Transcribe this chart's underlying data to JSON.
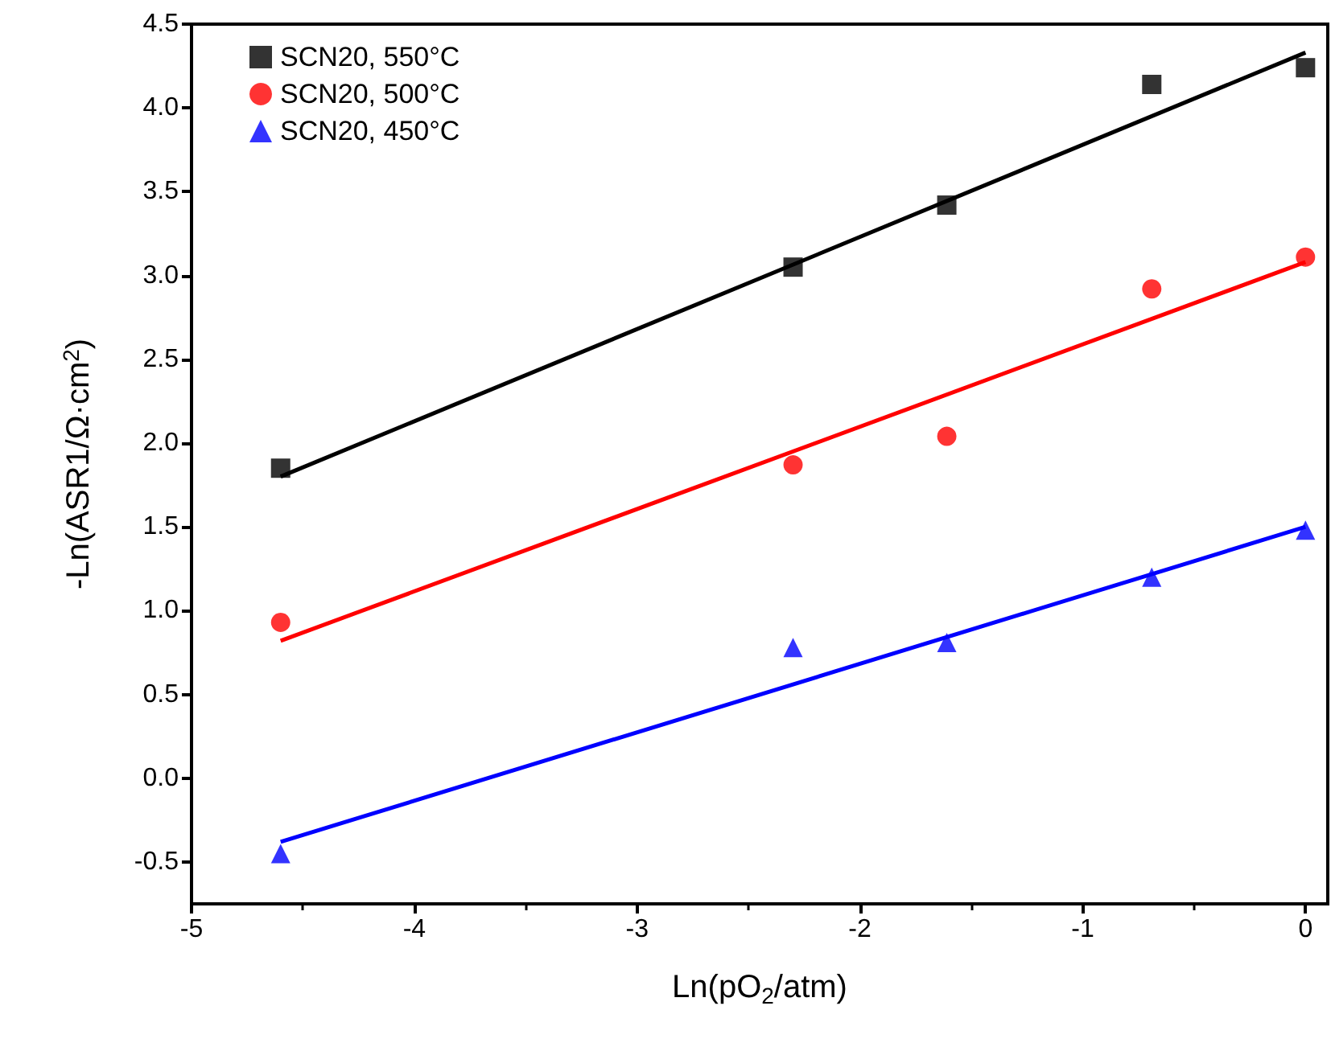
{
  "chart_data": {
    "type": "scatter",
    "xlabel": "Ln(pO$_{2}$/atm)",
    "ylabel": "-Ln(ASR1/Ω·cm$^{2}$)",
    "xlim": [
      -5,
      0.1
    ],
    "xticks": [
      -5,
      -4,
      -3,
      -2,
      -1,
      0
    ],
    "ylim": [
      -0.75,
      4.5
    ],
    "yticks": [
      -0.5,
      {
        "value": 0,
        "label": "0.0"
      },
      0.5,
      {
        "value": 1,
        "label": "1.0"
      },
      1.5,
      {
        "value": 2,
        "label": "2.0"
      },
      2.5,
      {
        "value": 3,
        "label": "3.0"
      },
      3.5,
      {
        "value": 4,
        "label": "4.0"
      },
      4.5
    ],
    "legend": "top left",
    "grid": false,
    "series": [
      {
        "name": "SCN20, 550°C",
        "color": "#000000",
        "marker": "square",
        "x": [
          -4.6,
          -2.3,
          -1.61,
          -0.69,
          0
        ],
        "values": [
          1.85,
          3.05,
          3.42,
          4.14,
          4.24
        ]
      },
      {
        "name": "SCN20, 500°C",
        "color": "#ff0000",
        "marker": "circle",
        "x": [
          -4.6,
          -2.3,
          -1.61,
          -0.69,
          0
        ],
        "values": [
          0.93,
          1.87,
          2.04,
          2.92,
          3.11
        ]
      },
      {
        "name": "SCN20, 450°C",
        "color": "#0000ff",
        "marker": "triangle",
        "x": [
          -4.6,
          -2.3,
          -1.61,
          -0.69,
          0
        ],
        "values": [
          -0.45,
          0.78,
          0.81,
          1.2,
          1.48
        ]
      },
      {
        "type": "line",
        "color": "#000000",
        "x": [
          -4.6,
          0
        ],
        "values": [
          1.8,
          4.33
        ]
      },
      {
        "type": "line",
        "color": "#ff0000",
        "x": [
          -4.6,
          0
        ],
        "values": [
          0.82,
          3.08
        ]
      },
      {
        "type": "line",
        "color": "#0000ff",
        "x": [
          -4.6,
          0
        ],
        "values": [
          -0.38,
          1.5
        ]
      }
    ]
  }
}
